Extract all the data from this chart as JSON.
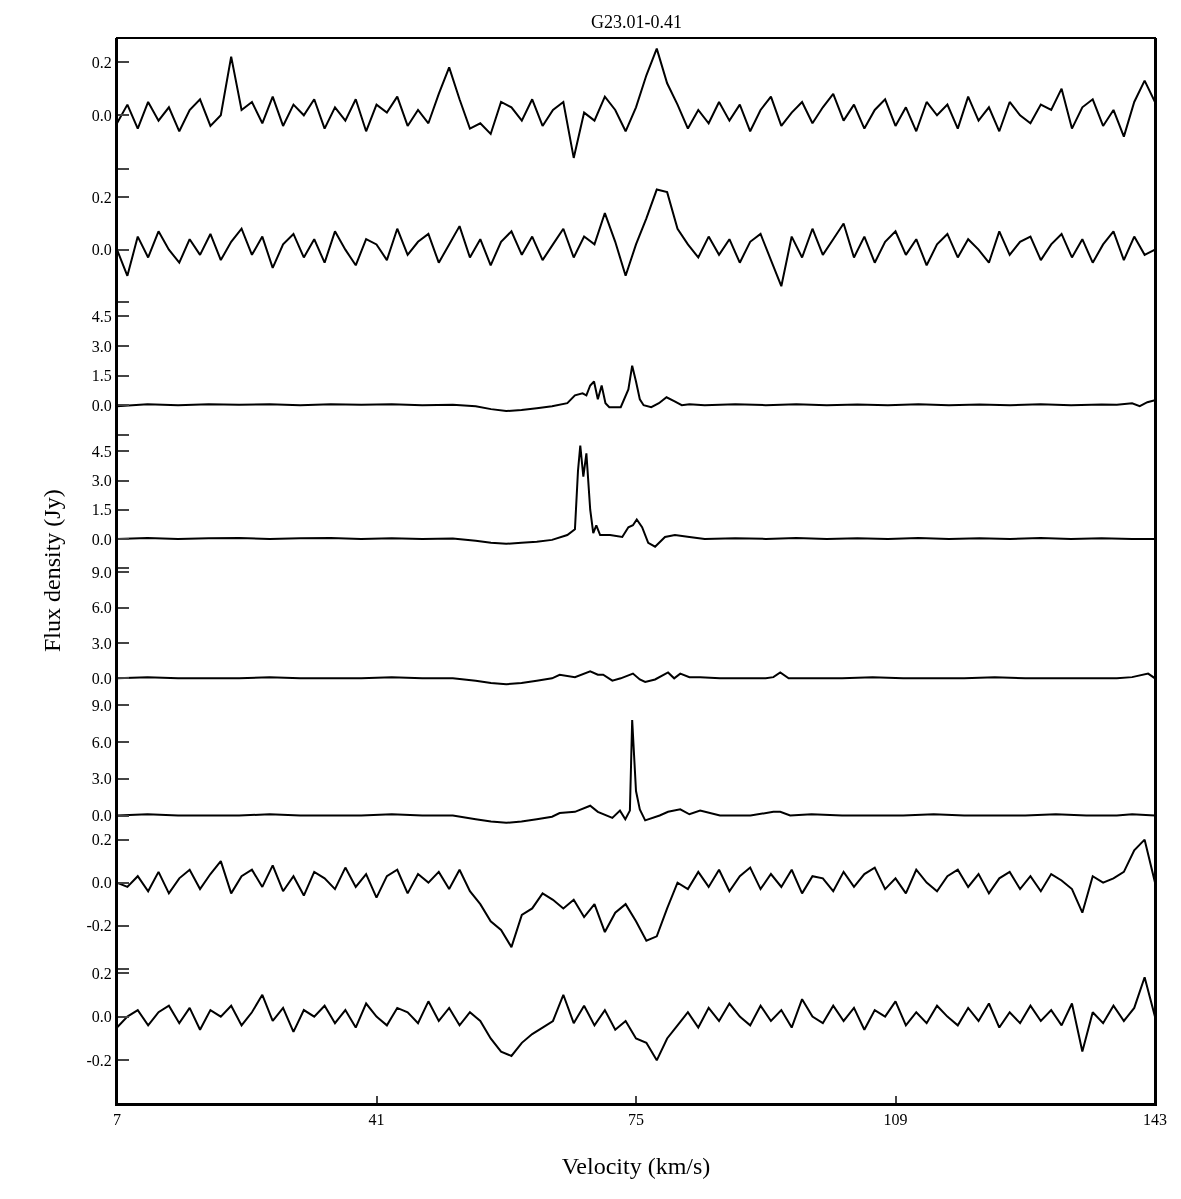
{
  "chart_data": [
    {
      "type": "line",
      "title": "G23.01-0.41",
      "xlim": [
        7,
        143
      ],
      "ylim": [
        -0.21,
        0.29
      ],
      "yticks": [
        {
          "value": -0.2,
          "label": null
        },
        {
          "value": 0,
          "label": "0.0"
        },
        0.2
      ],
      "tick_labels": "y",
      "x": [
        7,
        8.36,
        9.72,
        11.08,
        12.44,
        13.8,
        15.16,
        16.52,
        17.88,
        19.24,
        20.6,
        21.96,
        23.32,
        24.68,
        26.04,
        27.4,
        28.76,
        30.12,
        31.48,
        32.84,
        34.2,
        35.56,
        36.92,
        38.28,
        39.64,
        41,
        42.36,
        43.72,
        45.08,
        46.44,
        47.8,
        49.16,
        50.52,
        51.88,
        53.24,
        54.6,
        55.96,
        57.32,
        58.68,
        60.04,
        61.4,
        62.76,
        64.12,
        65.48,
        66.84,
        68.2,
        69.56,
        70.92,
        72.28,
        73.64,
        75,
        76.36,
        77.72,
        79.08,
        80.44,
        81.8,
        83.16,
        84.52,
        85.88,
        87.24,
        88.6,
        89.96,
        91.32,
        92.68,
        94.04,
        95.4,
        96.76,
        98.12,
        99.48,
        100.84,
        102.2,
        103.56,
        104.92,
        106.28,
        107.64,
        109,
        110.36,
        111.72,
        113.08,
        114.44,
        115.8,
        117.16,
        118.52,
        119.88,
        121.24,
        122.6,
        123.96,
        125.32,
        126.68,
        128.04,
        129.4,
        130.76,
        132.12,
        133.48,
        134.84,
        136.2,
        137.56,
        138.92,
        140.28,
        141.64,
        143
      ],
      "series": [
        {
          "color": "#000000",
          "values": [
            -0.03,
            0.04,
            -0.05,
            0.05,
            -0.02,
            0.03,
            -0.06,
            0.02,
            0.06,
            -0.04,
            0.0,
            0.22,
            0.02,
            0.05,
            -0.03,
            0.07,
            -0.04,
            0.04,
            0.0,
            0.06,
            -0.05,
            0.03,
            -0.02,
            0.06,
            -0.06,
            0.04,
            0.01,
            0.07,
            -0.04,
            0.02,
            -0.03,
            0.08,
            0.18,
            0.06,
            -0.05,
            -0.03,
            -0.07,
            0.05,
            0.03,
            -0.02,
            0.06,
            -0.04,
            0.02,
            0.05,
            -0.16,
            0.01,
            -0.02,
            0.07,
            0.02,
            -0.06,
            0.03,
            0.15,
            0.25,
            0.12,
            0.04,
            -0.05,
            0.02,
            -0.03,
            0.05,
            -0.02,
            0.04,
            -0.06,
            0.02,
            0.07,
            -0.04,
            0.01,
            0.05,
            -0.03,
            0.03,
            0.08,
            -0.02,
            0.04,
            -0.05,
            0.02,
            0.06,
            -0.04,
            0.03,
            -0.06,
            0.05,
            0.0,
            0.04,
            -0.05,
            0.07,
            -0.02,
            0.03,
            -0.06,
            0.05,
            0.0,
            -0.03,
            0.04,
            0.02,
            0.1,
            -0.05,
            0.03,
            0.06,
            -0.04,
            0.02,
            -0.08,
            0.05,
            0.13,
            0.05
          ]
        }
      ]
    },
    {
      "type": "line",
      "xlim": [
        7,
        143
      ],
      "ylim": [
        -0.21,
        0.3
      ],
      "yticks": [
        {
          "value": -0.2,
          "label": null
        },
        {
          "value": 0,
          "label": "0.0"
        },
        0.2
      ],
      "tick_labels": "y",
      "x": [
        7,
        8.36,
        9.72,
        11.08,
        12.44,
        13.8,
        15.16,
        16.52,
        17.88,
        19.24,
        20.6,
        21.96,
        23.32,
        24.68,
        26.04,
        27.4,
        28.76,
        30.12,
        31.48,
        32.84,
        34.2,
        35.56,
        36.92,
        38.28,
        39.64,
        41,
        42.36,
        43.72,
        45.08,
        46.44,
        47.8,
        49.16,
        50.52,
        51.88,
        53.24,
        54.6,
        55.96,
        57.32,
        58.68,
        60.04,
        61.4,
        62.76,
        64.12,
        65.48,
        66.84,
        68.2,
        69.56,
        70.92,
        72.28,
        73.64,
        75,
        76.36,
        77.72,
        79.08,
        80.44,
        81.8,
        83.16,
        84.52,
        85.88,
        87.24,
        88.6,
        89.96,
        91.32,
        92.68,
        94.04,
        95.4,
        96.76,
        98.12,
        99.48,
        100.84,
        102.2,
        103.56,
        104.92,
        106.28,
        107.64,
        109,
        110.36,
        111.72,
        113.08,
        114.44,
        115.8,
        117.16,
        118.52,
        119.88,
        121.24,
        122.6,
        123.96,
        125.32,
        126.68,
        128.04,
        129.4,
        130.76,
        132.12,
        133.48,
        134.84,
        136.2,
        137.56,
        138.92,
        140.28,
        141.64,
        143
      ],
      "series": [
        {
          "color": "#000000",
          "values": [
            0.0,
            -0.1,
            0.05,
            -0.03,
            0.07,
            0.0,
            -0.05,
            0.04,
            -0.02,
            0.06,
            -0.04,
            0.03,
            0.08,
            -0.02,
            0.05,
            -0.07,
            0.02,
            0.06,
            -0.03,
            0.04,
            -0.05,
            0.07,
            0.0,
            -0.06,
            0.04,
            0.02,
            -0.04,
            0.08,
            -0.02,
            0.03,
            0.06,
            -0.05,
            0.02,
            0.09,
            -0.03,
            0.04,
            -0.06,
            0.03,
            0.07,
            -0.02,
            0.05,
            -0.04,
            0.02,
            0.08,
            -0.03,
            0.05,
            0.02,
            0.14,
            0.03,
            -0.1,
            0.02,
            0.12,
            0.23,
            0.22,
            0.08,
            0.02,
            -0.03,
            0.05,
            -0.02,
            0.04,
            -0.05,
            0.03,
            0.06,
            -0.04,
            -0.14,
            0.05,
            -0.03,
            0.08,
            -0.02,
            0.04,
            0.1,
            -0.03,
            0.05,
            -0.05,
            0.03,
            0.07,
            -0.02,
            0.04,
            -0.06,
            0.02,
            0.06,
            -0.03,
            0.04,
            0.0,
            -0.05,
            0.07,
            -0.02,
            0.03,
            0.05,
            -0.04,
            0.02,
            0.06,
            -0.03,
            0.04,
            -0.05,
            0.02,
            0.07,
            -0.04,
            0.05,
            -0.02,
            0.0
          ]
        }
      ]
    },
    {
      "type": "line",
      "xlim": [
        7,
        143
      ],
      "ylim": [
        -1.65,
        5.1
      ],
      "yticks": [
        {
          "value": -1.5,
          "label": null
        },
        {
          "value": 0,
          "label": "0.0"
        },
        1.5,
        {
          "value": 3,
          "label": "3.0"
        },
        4.5
      ],
      "tick_labels": "y",
      "series": [
        {
          "color": "#000000",
          "x": [
            7,
            11,
            15,
            19,
            23,
            27,
            31,
            35,
            39,
            43,
            47,
            51,
            54,
            56,
            58,
            60,
            62,
            64,
            66,
            67,
            68,
            68.5,
            69,
            69.5,
            70,
            70.5,
            71,
            71.5,
            72,
            73,
            74,
            74.5,
            75,
            75.5,
            76,
            77,
            78,
            79,
            80,
            81,
            82,
            84,
            88,
            92,
            96,
            100,
            104,
            108,
            112,
            116,
            120,
            124,
            128,
            132,
            136,
            138,
            140,
            141,
            142,
            143
          ],
          "values": [
            -0.05,
            0.05,
            0.0,
            0.05,
            0.02,
            0.05,
            0.0,
            0.05,
            0.02,
            0.05,
            0.0,
            0.02,
            -0.05,
            -0.2,
            -0.3,
            -0.25,
            -0.15,
            -0.05,
            0.1,
            0.5,
            0.6,
            0.5,
            1.0,
            1.2,
            0.3,
            1.0,
            0.1,
            -0.1,
            -0.1,
            -0.1,
            0.8,
            2.0,
            1.2,
            0.3,
            0.0,
            -0.1,
            0.1,
            0.4,
            0.2,
            0.0,
            0.05,
            0.0,
            0.05,
            0.0,
            0.05,
            0.0,
            0.03,
            0.0,
            0.05,
            0.0,
            0.03,
            0.0,
            0.05,
            0.0,
            0.03,
            0.02,
            0.1,
            -0.05,
            0.15,
            0.25
          ]
        }
      ]
    },
    {
      "type": "line",
      "ylabel": "Flux density (Jy)",
      "xlim": [
        7,
        143
      ],
      "ylim": [
        -1.65,
        5.2
      ],
      "yticks": [
        {
          "value": -1.5,
          "label": null
        },
        {
          "value": 0,
          "label": "0.0"
        },
        1.5,
        {
          "value": 3,
          "label": "3.0"
        },
        4.5
      ],
      "tick_labels": "y",
      "series": [
        {
          "color": "#000000",
          "x": [
            7,
            11,
            15,
            19,
            23,
            27,
            31,
            35,
            39,
            43,
            47,
            51,
            54,
            56,
            58,
            60,
            62,
            64,
            66,
            67,
            67.4,
            67.7,
            68.1,
            68.5,
            69,
            69.4,
            69.8,
            70.3,
            71.6,
            73.2,
            74,
            74.6,
            75.1,
            75.8,
            76.6,
            77.5,
            78.8,
            80.1,
            82,
            84,
            88,
            92,
            96,
            100,
            104,
            108,
            112,
            116,
            120,
            124,
            128,
            132,
            136,
            140,
            143
          ],
          "values": [
            0.0,
            0.05,
            0.0,
            0.03,
            0.05,
            0.0,
            0.03,
            0.05,
            0.0,
            0.03,
            0.0,
            0.02,
            -0.1,
            -0.2,
            -0.25,
            -0.2,
            -0.15,
            -0.05,
            0.2,
            0.5,
            3.5,
            4.8,
            3.2,
            4.4,
            1.5,
            0.3,
            0.7,
            0.2,
            0.2,
            0.1,
            0.6,
            0.7,
            1.0,
            0.6,
            -0.2,
            -0.4,
            0.1,
            0.2,
            0.1,
            0.0,
            0.03,
            0.0,
            0.05,
            0.0,
            0.03,
            0.0,
            0.05,
            0.0,
            0.03,
            0.0,
            0.05,
            0.0,
            0.03,
            0.0,
            0.0
          ]
        }
      ]
    },
    {
      "type": "line",
      "xlim": [
        7,
        143
      ],
      "ylim": [
        -2.2,
        9.1
      ],
      "yticks": [
        {
          "value": 0,
          "label": "0.0"
        },
        {
          "value": 3,
          "label": "3.0"
        },
        {
          "value": 6,
          "label": "6.0"
        },
        {
          "value": 9,
          "label": "9.0"
        }
      ],
      "tick_labels": "y",
      "series": [
        {
          "color": "#000000",
          "x": [
            7,
            11,
            15,
            19,
            23,
            27,
            31,
            35,
            39,
            43,
            47,
            51,
            54,
            56,
            58,
            60,
            62,
            64,
            65,
            67,
            69,
            70,
            70.7,
            71.9,
            73,
            74.6,
            75.5,
            76.2,
            77.5,
            79.2,
            80,
            80.8,
            82,
            83.4,
            86,
            90,
            92,
            93,
            93.9,
            95,
            98,
            102,
            106,
            110,
            114,
            118,
            122,
            126,
            130,
            134,
            138,
            140,
            142.1,
            143
          ],
          "values": [
            0.0,
            0.1,
            0.0,
            0.0,
            0.0,
            0.1,
            0.0,
            0.0,
            0.0,
            0.1,
            0.0,
            0.0,
            -0.2,
            -0.4,
            -0.5,
            -0.4,
            -0.2,
            0.0,
            0.3,
            0.1,
            0.6,
            0.3,
            0.3,
            -0.2,
            0.0,
            0.4,
            -0.1,
            -0.3,
            -0.1,
            0.5,
            0.0,
            0.4,
            0.1,
            0.1,
            0.0,
            0.0,
            0.0,
            0.1,
            0.5,
            0.0,
            0.0,
            0.0,
            0.1,
            0.0,
            0.0,
            0.0,
            0.1,
            0.0,
            0.0,
            0.0,
            0.0,
            0.1,
            0.4,
            0.0
          ]
        }
      ]
    },
    {
      "type": "line",
      "xlim": [
        7,
        143
      ],
      "ylim": [
        -1.8,
        9.1
      ],
      "yticks": [
        {
          "value": 0,
          "label": "0.0"
        },
        {
          "value": 3,
          "label": "3.0"
        },
        {
          "value": 6,
          "label": "6.0"
        },
        {
          "value": 9,
          "label": "9.0"
        }
      ],
      "tick_labels": "y",
      "series": [
        {
          "color": "#000000",
          "x": [
            7,
            11,
            15,
            19,
            23,
            27,
            31,
            35,
            39,
            43,
            47,
            51,
            54,
            56,
            58,
            60,
            62,
            64,
            65,
            67,
            69,
            70,
            71.9,
            72.9,
            73.6,
            74.2,
            74.5,
            75,
            75.5,
            76.2,
            78.1,
            79.2,
            80.8,
            82,
            83.4,
            86,
            90,
            93,
            93.9,
            95.2,
            98,
            102,
            106,
            110,
            114,
            118,
            122,
            126,
            130,
            134,
            138,
            140,
            143
          ],
          "values": [
            0.0,
            0.1,
            0.0,
            0.0,
            0.0,
            0.1,
            0.0,
            0.0,
            0.0,
            0.1,
            0.0,
            0.0,
            -0.3,
            -0.5,
            -0.6,
            -0.5,
            -0.3,
            -0.1,
            0.2,
            0.3,
            0.8,
            0.3,
            -0.2,
            0.4,
            -0.3,
            0.4,
            7.8,
            2.0,
            0.5,
            -0.4,
            0.0,
            0.3,
            0.5,
            0.1,
            0.4,
            0.0,
            0.0,
            0.3,
            0.3,
            0.0,
            0.1,
            0.0,
            0.0,
            0.0,
            0.1,
            0.0,
            0.0,
            0.0,
            0.1,
            0.0,
            0.0,
            0.1,
            0.0
          ]
        }
      ]
    },
    {
      "type": "line",
      "xlim": [
        7,
        143
      ],
      "ylim": [
        -0.41,
        0.21
      ],
      "yticks": [
        {
          "value": -0.4,
          "label": null
        },
        -0.2,
        {
          "value": 0,
          "label": "0.0"
        },
        0.2
      ],
      "tick_labels": "y",
      "x": [
        7,
        8.36,
        9.72,
        11.08,
        12.44,
        13.8,
        15.16,
        16.52,
        17.88,
        19.24,
        20.6,
        21.96,
        23.32,
        24.68,
        26.04,
        27.4,
        28.76,
        30.12,
        31.48,
        32.84,
        34.2,
        35.56,
        36.92,
        38.28,
        39.64,
        41,
        42.36,
        43.72,
        45.08,
        46.44,
        47.8,
        49.16,
        50.52,
        51.88,
        53.24,
        54.6,
        55.96,
        57.32,
        58.68,
        60.04,
        61.4,
        62.76,
        64.12,
        65.48,
        66.84,
        68.2,
        69.56,
        70.92,
        72.28,
        73.64,
        75,
        76.36,
        77.72,
        79.08,
        80.44,
        81.8,
        83.16,
        84.52,
        85.88,
        87.24,
        88.6,
        89.96,
        91.32,
        92.68,
        94.04,
        95.4,
        96.76,
        98.12,
        99.48,
        100.84,
        102.2,
        103.56,
        104.92,
        106.28,
        107.64,
        109,
        110.36,
        111.72,
        113.08,
        114.44,
        115.8,
        117.16,
        118.52,
        119.88,
        121.24,
        122.6,
        123.96,
        125.32,
        126.68,
        128.04,
        129.4,
        130.76,
        132.12,
        133.48,
        134.84,
        136.2,
        137.56,
        138.92,
        140.28,
        141.64,
        143
      ],
      "series": [
        {
          "color": "#000000",
          "values": [
            0.0,
            -0.02,
            0.03,
            -0.04,
            0.05,
            -0.05,
            0.02,
            0.06,
            -0.03,
            0.04,
            0.1,
            -0.05,
            0.03,
            0.06,
            -0.02,
            0.08,
            -0.04,
            0.03,
            -0.06,
            0.05,
            0.02,
            -0.03,
            0.07,
            -0.02,
            0.04,
            -0.07,
            0.03,
            0.06,
            -0.05,
            0.04,
            0.0,
            0.05,
            -0.03,
            0.06,
            -0.04,
            -0.1,
            -0.18,
            -0.22,
            -0.3,
            -0.15,
            -0.12,
            -0.05,
            -0.08,
            -0.12,
            -0.08,
            -0.16,
            -0.1,
            -0.23,
            -0.14,
            -0.1,
            -0.18,
            -0.27,
            -0.25,
            -0.12,
            0.0,
            -0.03,
            0.05,
            -0.02,
            0.06,
            -0.04,
            0.03,
            0.07,
            -0.03,
            0.04,
            -0.02,
            0.06,
            -0.05,
            0.03,
            0.02,
            -0.04,
            0.05,
            -0.02,
            0.04,
            0.07,
            -0.03,
            0.02,
            -0.05,
            0.06,
            0.0,
            -0.04,
            0.03,
            0.06,
            -0.02,
            0.04,
            -0.05,
            0.02,
            0.05,
            -0.03,
            0.03,
            -0.04,
            0.04,
            0.01,
            -0.03,
            -0.14,
            0.03,
            0.0,
            0.02,
            0.05,
            0.15,
            0.2,
            0.0
          ]
        }
      ]
    },
    {
      "type": "line",
      "xlabel": "Velocity (km/s)",
      "xlim": [
        7,
        143
      ],
      "xticks": [
        7,
        41,
        75,
        109,
        143
      ],
      "ylim": [
        -0.4,
        0.21
      ],
      "yticks": [
        -0.2,
        {
          "value": 0,
          "label": "0.0"
        },
        0.2
      ],
      "x": [
        7,
        8.36,
        9.72,
        11.08,
        12.44,
        13.8,
        15.16,
        16.52,
        17.88,
        19.24,
        20.6,
        21.96,
        23.32,
        24.68,
        26.04,
        27.4,
        28.76,
        30.12,
        31.48,
        32.84,
        34.2,
        35.56,
        36.92,
        38.28,
        39.64,
        41,
        42.36,
        43.72,
        45.08,
        46.44,
        47.8,
        49.16,
        50.52,
        51.88,
        53.24,
        54.6,
        55.96,
        57.32,
        58.68,
        60.04,
        61.4,
        62.76,
        64.12,
        65.48,
        66.84,
        68.2,
        69.56,
        70.92,
        72.28,
        73.64,
        75,
        76.36,
        77.72,
        79.08,
        80.44,
        81.8,
        83.16,
        84.52,
        85.88,
        87.24,
        88.6,
        89.96,
        91.32,
        92.68,
        94.04,
        95.4,
        96.76,
        98.12,
        99.48,
        100.84,
        102.2,
        103.56,
        104.92,
        106.28,
        107.64,
        109,
        110.36,
        111.72,
        113.08,
        114.44,
        115.8,
        117.16,
        118.52,
        119.88,
        121.24,
        122.6,
        123.96,
        125.32,
        126.68,
        128.04,
        129.4,
        130.76,
        132.12,
        133.48,
        134.84,
        136.2,
        137.56,
        138.92,
        140.28,
        141.64,
        143
      ],
      "series": [
        {
          "color": "#000000",
          "values": [
            -0.05,
            0.0,
            0.03,
            -0.04,
            0.02,
            0.05,
            -0.03,
            0.04,
            -0.06,
            0.03,
            0.0,
            0.05,
            -0.04,
            0.02,
            0.1,
            -0.02,
            0.04,
            -0.07,
            0.03,
            0.0,
            0.05,
            -0.03,
            0.03,
            -0.05,
            0.06,
            0.0,
            -0.04,
            0.04,
            0.02,
            -0.03,
            0.07,
            -0.02,
            0.04,
            -0.04,
            0.02,
            -0.02,
            -0.1,
            -0.16,
            -0.18,
            -0.12,
            -0.08,
            -0.05,
            -0.02,
            0.1,
            -0.03,
            0.05,
            -0.04,
            0.03,
            -0.06,
            -0.02,
            -0.1,
            -0.12,
            -0.2,
            -0.1,
            -0.04,
            0.02,
            -0.05,
            0.04,
            -0.02,
            0.06,
            0.0,
            -0.04,
            0.05,
            -0.02,
            0.03,
            -0.05,
            0.08,
            0.0,
            -0.03,
            0.05,
            -0.02,
            0.04,
            -0.06,
            0.03,
            0.0,
            0.07,
            -0.04,
            0.02,
            -0.03,
            0.05,
            0.0,
            -0.04,
            0.04,
            -0.02,
            0.06,
            -0.05,
            0.02,
            -0.03,
            0.05,
            -0.02,
            0.03,
            -0.04,
            0.06,
            -0.16,
            0.02,
            -0.03,
            0.05,
            -0.02,
            0.04,
            0.18,
            0.0
          ]
        }
      ]
    }
  ]
}
